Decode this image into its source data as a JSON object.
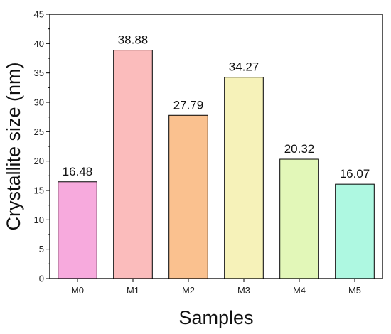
{
  "chart_data": {
    "type": "bar",
    "title": "",
    "xlabel": "Samples",
    "ylabel": "Crystallite size (nm)",
    "categories": [
      "M0",
      "M1",
      "M2",
      "M3",
      "M4",
      "M5"
    ],
    "values": [
      16.48,
      38.88,
      27.79,
      34.27,
      20.32,
      16.07
    ],
    "value_labels": [
      "16.48",
      "38.88",
      "27.79",
      "34.27",
      "20.32",
      "16.07"
    ],
    "colors": [
      "#f7aadd",
      "#fbbcbc",
      "#fac18f",
      "#f6f2b9",
      "#e2f7b8",
      "#aef8e1"
    ],
    "ylim": [
      0,
      45
    ],
    "yticks": [
      "0",
      "5",
      "10",
      "15",
      "20",
      "25",
      "30",
      "35",
      "40",
      "45"
    ],
    "grid": false,
    "legend": "none"
  }
}
